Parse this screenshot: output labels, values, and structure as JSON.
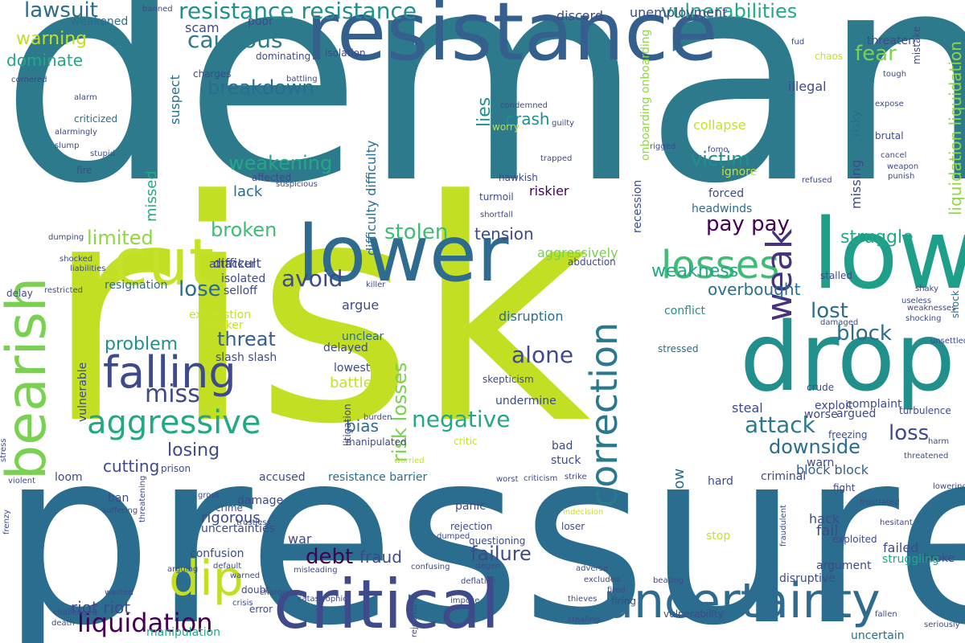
{
  "palette": [
    "#2c7a8c",
    "#2a6d8e",
    "#355f8d",
    "#3e4a89",
    "#461e6e",
    "#21908c",
    "#22a884",
    "#3fbc73",
    "#7ad151",
    "#c6e12a"
  ],
  "words": [
    {
      "text": "demand",
      "color": "#2c7a8c"
    },
    {
      "text": "risk",
      "color": "#c2df23"
    },
    {
      "text": "pressure",
      "color": "#2a6d8e"
    },
    {
      "text": "resistance",
      "color": "#355f8d"
    },
    {
      "text": "lower",
      "color": "#2f6b8e"
    },
    {
      "text": "drop",
      "color": "#21908c"
    },
    {
      "text": "low",
      "color": "#1f9e89"
    },
    {
      "text": "critical",
      "color": "#3e4a89"
    },
    {
      "text": "uncertainty",
      "color": "#2f6b8e"
    },
    {
      "text": "bearish",
      "color": "#7ad151"
    },
    {
      "text": "cut",
      "color": "#c6e12a"
    },
    {
      "text": "dip",
      "color": "#c2df23"
    },
    {
      "text": "falling",
      "color": "#3e4a89"
    },
    {
      "text": "aggressive",
      "color": "#22a884"
    },
    {
      "text": "losses",
      "color": "#3fbc73"
    },
    {
      "text": "weak",
      "color": "#46327e"
    },
    {
      "text": "correction",
      "color": "#2a788e"
    },
    {
      "text": "liquidation",
      "color": "#440154"
    },
    {
      "text": "resistance resistance",
      "color": "#21908c"
    },
    {
      "text": "lawsuit",
      "color": "#2a6d8e"
    },
    {
      "text": "cautious",
      "color": "#2c7a8c"
    },
    {
      "text": "vulnerabilities",
      "color": "#22a884"
    },
    {
      "text": "unemployment",
      "color": "#3e4a89"
    },
    {
      "text": "breakdown",
      "color": "#2a6d8e"
    },
    {
      "text": "warning",
      "color": "#c2df23"
    },
    {
      "text": "scam",
      "color": "#3e4a89"
    },
    {
      "text": "dominate",
      "color": "#22a884"
    },
    {
      "text": "weakening",
      "color": "#22a884"
    },
    {
      "text": "victim",
      "color": "#21908c"
    },
    {
      "text": "pay pay",
      "color": "#440154"
    },
    {
      "text": "fear",
      "color": "#7ad151"
    },
    {
      "text": "liquidation liquidation",
      "color": "#90d743"
    },
    {
      "text": "limited",
      "color": "#90d743"
    },
    {
      "text": "broken",
      "color": "#3fbc73"
    },
    {
      "text": "stolen",
      "color": "#3fbc73"
    },
    {
      "text": "tension",
      "color": "#3e4a89"
    },
    {
      "text": "struggle",
      "color": "#22a884"
    },
    {
      "text": "weakness",
      "color": "#22a884"
    },
    {
      "text": "avoid",
      "color": "#3e4a89"
    },
    {
      "text": "lose",
      "color": "#2a6d8e"
    },
    {
      "text": "lost",
      "color": "#2a6d8e"
    },
    {
      "text": "overbought",
      "color": "#2a6d8e"
    },
    {
      "text": "block",
      "color": "#2a6d8e"
    },
    {
      "text": "threat",
      "color": "#355f8d"
    },
    {
      "text": "problem",
      "color": "#21908c"
    },
    {
      "text": "alone",
      "color": "#3e4a89"
    },
    {
      "text": "miss",
      "color": "#3e4a89"
    },
    {
      "text": "negative",
      "color": "#22a884"
    },
    {
      "text": "attack",
      "color": "#2c7a8c"
    },
    {
      "text": "loss",
      "color": "#3e4a89"
    },
    {
      "text": "downside",
      "color": "#2a6d8e"
    },
    {
      "text": "debt",
      "color": "#440154"
    },
    {
      "text": "fraud",
      "color": "#3e4a89"
    },
    {
      "text": "failure",
      "color": "#3e4a89"
    },
    {
      "text": "losing",
      "color": "#3e4a89"
    },
    {
      "text": "cutting",
      "color": "#3e4a89"
    },
    {
      "text": "riot riot",
      "color": "#3e4a89"
    },
    {
      "text": "steal",
      "color": "#3e4a89"
    },
    {
      "text": "crash",
      "color": "#21908c"
    },
    {
      "text": "collapse",
      "color": "#c6e12a"
    },
    {
      "text": "headwinds",
      "color": "#2a6d8e"
    },
    {
      "text": "forced",
      "color": "#3e4a89"
    },
    {
      "text": "ignore",
      "color": "#c6e12a"
    },
    {
      "text": "missing",
      "color": "#3e4a89"
    },
    {
      "text": "illegal",
      "color": "#3e4a89"
    },
    {
      "text": "lack",
      "color": "#2a6d8e"
    },
    {
      "text": "missed",
      "color": "#22a884"
    },
    {
      "text": "suspect",
      "color": "#2a6d8e"
    },
    {
      "text": "lies",
      "color": "#21908c"
    },
    {
      "text": "difficulty difficulty",
      "color": "#2a6d8e"
    },
    {
      "text": "risk losses",
      "color": "#7ad151"
    },
    {
      "text": "battle",
      "color": "#c6e12a"
    },
    {
      "text": "bias",
      "color": "#2a6d8e"
    },
    {
      "text": "argue",
      "color": "#3e4a89"
    },
    {
      "text": "disruption",
      "color": "#2a6d8e"
    },
    {
      "text": "block block",
      "color": "#355f8d"
    },
    {
      "text": "fail",
      "color": "#3e4a89"
    },
    {
      "text": "failed",
      "color": "#3e4a89"
    },
    {
      "text": "hack",
      "color": "#3e4a89"
    },
    {
      "text": "low low",
      "color": "#2a6d8e"
    },
    {
      "text": "warn",
      "color": "#3e4a89"
    },
    {
      "text": "war",
      "color": "#3e4a89"
    },
    {
      "text": "panic",
      "color": "#3e4a89"
    },
    {
      "text": "hard",
      "color": "#3e4a89"
    },
    {
      "text": "rigorous",
      "color": "#3e4a89"
    },
    {
      "text": "damage",
      "color": "#3e4a89"
    },
    {
      "text": "broke",
      "color": "#3e4a89"
    },
    {
      "text": "struggling",
      "color": "#22a884"
    },
    {
      "text": "uncertain",
      "color": "#2a6d8e"
    },
    {
      "text": "manipulation",
      "color": "#22a884"
    },
    {
      "text": "resistance barrier",
      "color": "#2a6d8e"
    },
    {
      "text": "accused",
      "color": "#3e4a89"
    },
    {
      "text": "recession",
      "color": "#3e4a89"
    },
    {
      "text": "onboarding onboarding",
      "color": "#90d743"
    },
    {
      "text": "delayed",
      "color": "#3e4a89"
    },
    {
      "text": "lowest",
      "color": "#3e4a89"
    },
    {
      "text": "weaker",
      "color": "#c6e12a"
    },
    {
      "text": "difficult",
      "color": "#3e4a89"
    },
    {
      "text": "resignation",
      "color": "#2a6d8e"
    },
    {
      "text": "slash slash",
      "color": "#3e4a89"
    },
    {
      "text": "riskier",
      "color": "#440154"
    },
    {
      "text": "aggressively",
      "color": "#7ad151"
    },
    {
      "text": "isolated",
      "color": "#3e4a89"
    },
    {
      "text": "selloff",
      "color": "#3e4a89"
    },
    {
      "text": "attacker",
      "color": "#3e4a89"
    },
    {
      "text": "exhaustion",
      "color": "#c6e12a"
    },
    {
      "text": "unclear",
      "color": "#2a6d8e"
    },
    {
      "text": "stressed",
      "color": "#2a6d8e"
    },
    {
      "text": "conflict",
      "color": "#21908c"
    },
    {
      "text": "shock",
      "color": "#2a6d8e"
    },
    {
      "text": "criticized",
      "color": "#2a6d8e"
    },
    {
      "text": "weakened",
      "color": "#2a6d8e"
    },
    {
      "text": "poor",
      "color": "#3e4a89"
    },
    {
      "text": "charges",
      "color": "#3e4a89"
    },
    {
      "text": "dominating",
      "color": "#3e4a89"
    },
    {
      "text": "discord",
      "color": "#3e4a89"
    },
    {
      "text": "threaten",
      "color": "#3e4a89"
    },
    {
      "text": "mistake",
      "color": "#3e4a89"
    },
    {
      "text": "chaos",
      "color": "#c6e12a"
    },
    {
      "text": "isolation",
      "color": "#3e4a89"
    },
    {
      "text": "risky",
      "color": "#2a6d8e"
    },
    {
      "text": "expose",
      "color": "#3e4a89"
    },
    {
      "text": "brutal",
      "color": "#3e4a89"
    },
    {
      "text": "weapon",
      "color": "#3e4a89"
    },
    {
      "text": "cancel",
      "color": "#3e4a89"
    },
    {
      "text": "punish",
      "color": "#3e4a89"
    },
    {
      "text": "refused",
      "color": "#3e4a89"
    },
    {
      "text": "crude",
      "color": "#3e4a89"
    },
    {
      "text": "worse",
      "color": "#3e4a89"
    },
    {
      "text": "argued",
      "color": "#3e4a89"
    },
    {
      "text": "complaint",
      "color": "#3e4a89"
    },
    {
      "text": "exploit",
      "color": "#3e4a89"
    },
    {
      "text": "turbulence",
      "color": "#3e4a89"
    },
    {
      "text": "threatened",
      "color": "#3e4a89"
    },
    {
      "text": "freezing",
      "color": "#3e4a89"
    },
    {
      "text": "criminal",
      "color": "#3e4a89"
    },
    {
      "text": "fight",
      "color": "#3e4a89"
    },
    {
      "text": "argument",
      "color": "#3e4a89"
    },
    {
      "text": "exploited",
      "color": "#3e4a89"
    },
    {
      "text": "disruptive",
      "color": "#3e4a89"
    },
    {
      "text": "stop",
      "color": "#c6e12a"
    },
    {
      "text": "uncertainties",
      "color": "#3e4a89"
    },
    {
      "text": "confusion",
      "color": "#3e4a89"
    },
    {
      "text": "crime",
      "color": "#3e4a89"
    },
    {
      "text": "ban",
      "color": "#3e4a89"
    },
    {
      "text": "prison",
      "color": "#3e4a89"
    },
    {
      "text": "loom",
      "color": "#3e4a89"
    },
    {
      "text": "bad",
      "color": "#3e4a89"
    },
    {
      "text": "stuck",
      "color": "#3e4a89"
    },
    {
      "text": "critic",
      "color": "#c6e12a"
    },
    {
      "text": "skepticism",
      "color": "#3e4a89"
    },
    {
      "text": "undermine",
      "color": "#3e4a89"
    },
    {
      "text": "litigation",
      "color": "#3e4a89"
    },
    {
      "text": "manipulated",
      "color": "#3e4a89"
    },
    {
      "text": "burden",
      "color": "#3e4a89"
    },
    {
      "text": "worried",
      "color": "#c6e12a"
    },
    {
      "text": "vulnerable",
      "color": "#3e4a89"
    },
    {
      "text": "fire",
      "color": "#3e4a89"
    },
    {
      "text": "alarm",
      "color": "#3e4a89"
    },
    {
      "text": "alarmingly",
      "color": "#3e4a89"
    },
    {
      "text": "slump",
      "color": "#3e4a89"
    },
    {
      "text": "stupid",
      "color": "#3e4a89"
    },
    {
      "text": "battling",
      "color": "#3e4a89"
    },
    {
      "text": "cornered",
      "color": "#3e4a89"
    },
    {
      "text": "affected",
      "color": "#3e4a89"
    },
    {
      "text": "suspicious",
      "color": "#3e4a89"
    },
    {
      "text": "condemned",
      "color": "#3e4a89"
    },
    {
      "text": "worry",
      "color": "#c6e12a"
    },
    {
      "text": "guilty",
      "color": "#3e4a89"
    },
    {
      "text": "hawkish",
      "color": "#3e4a89"
    },
    {
      "text": "trapped",
      "color": "#3e4a89"
    },
    {
      "text": "turmoil",
      "color": "#3e4a89"
    },
    {
      "text": "shortfall",
      "color": "#3e4a89"
    },
    {
      "text": "dumping",
      "color": "#3e4a89"
    },
    {
      "text": "shocked",
      "color": "#3e4a89"
    },
    {
      "text": "liabilities",
      "color": "#3e4a89"
    },
    {
      "text": "severe",
      "color": "#c6e12a"
    },
    {
      "text": "delay",
      "color": "#3e4a89"
    },
    {
      "text": "restricted",
      "color": "#3e4a89"
    },
    {
      "text": "killer",
      "color": "#3e4a89"
    },
    {
      "text": "abduction",
      "color": "#3e4a89"
    },
    {
      "text": "stalled",
      "color": "#3e4a89"
    },
    {
      "text": "shaky",
      "color": "#3e4a89"
    },
    {
      "text": "useless",
      "color": "#3e4a89"
    },
    {
      "text": "weaknesses",
      "color": "#3e4a89"
    },
    {
      "text": "shocking",
      "color": "#3e4a89"
    },
    {
      "text": "damaged",
      "color": "#3e4a89"
    },
    {
      "text": "unsettled",
      "color": "#3e4a89"
    },
    {
      "text": "harm",
      "color": "#3e4a89"
    },
    {
      "text": "lowering",
      "color": "#3e4a89"
    },
    {
      "text": "frustrated",
      "color": "#3e4a89"
    },
    {
      "text": "fraudulent",
      "color": "#3e4a89"
    },
    {
      "text": "hesitant",
      "color": "#3e4a89"
    },
    {
      "text": "seriously",
      "color": "#3e4a89"
    },
    {
      "text": "fallen",
      "color": "#3e4a89"
    },
    {
      "text": "vulnerability",
      "color": "#3e4a89"
    },
    {
      "text": "firing",
      "color": "#3e4a89"
    },
    {
      "text": "beating",
      "color": "#3e4a89"
    },
    {
      "text": "stealing",
      "color": "#3e4a89"
    },
    {
      "text": "thieves",
      "color": "#3e4a89"
    },
    {
      "text": "fired",
      "color": "#3e4a89"
    },
    {
      "text": "excluded",
      "color": "#3e4a89"
    },
    {
      "text": "adverse",
      "color": "#3e4a89"
    },
    {
      "text": "loser",
      "color": "#3e4a89"
    },
    {
      "text": "indecision",
      "color": "#3e4a89"
    },
    {
      "text": "rejection",
      "color": "#c6e12a"
    },
    {
      "text": "questioning",
      "color": "#3e4a89"
    },
    {
      "text": "deflation",
      "color": "#3e4a89"
    },
    {
      "text": "impose",
      "color": "#3e4a89"
    },
    {
      "text": "degen",
      "color": "#3e4a89"
    },
    {
      "text": "confusing",
      "color": "#3e4a89"
    },
    {
      "text": "rejected",
      "color": "#3e4a89"
    },
    {
      "text": "error",
      "color": "#3e4a89"
    },
    {
      "text": "doubt",
      "color": "#3e4a89"
    },
    {
      "text": "charged",
      "color": "#3e4a89"
    },
    {
      "text": "crisis",
      "color": "#3e4a89"
    },
    {
      "text": "catastrophic",
      "color": "#3e4a89"
    },
    {
      "text": "misleading",
      "color": "#3e4a89"
    },
    {
      "text": "warned",
      "color": "#3e4a89"
    },
    {
      "text": "default",
      "color": "#3e4a89"
    },
    {
      "text": "trustless",
      "color": "#3e4a89"
    },
    {
      "text": "gross",
      "color": "#3e4a89"
    },
    {
      "text": "threatening",
      "color": "#3e4a89"
    },
    {
      "text": "suffering",
      "color": "#3e4a89"
    },
    {
      "text": "violent",
      "color": "#3e4a89"
    },
    {
      "text": "wasted",
      "color": "#3e4a89"
    },
    {
      "text": "challenged",
      "color": "#3e4a89"
    },
    {
      "text": "death",
      "color": "#3e4a89"
    },
    {
      "text": "stress",
      "color": "#3e4a89"
    },
    {
      "text": "frenzy",
      "color": "#3e4a89"
    },
    {
      "text": "rigged",
      "color": "#3e4a89"
    },
    {
      "text": "fomo",
      "color": "#3e4a89"
    },
    {
      "text": "banned",
      "color": "#3e4a89"
    },
    {
      "text": "criticism",
      "color": "#3e4a89"
    },
    {
      "text": "strike",
      "color": "#3e4a89"
    },
    {
      "text": "worst",
      "color": "#3e4a89"
    },
    {
      "text": "dumped",
      "color": "#3e4a89"
    },
    {
      "text": "arguing",
      "color": "#3e4a89"
    },
    {
      "text": "fud",
      "color": "#3e4a89"
    },
    {
      "text": "tough",
      "color": "#3e4a89"
    },
    {
      "text": "hide",
      "color": "#3e4a89"
    }
  ]
}
